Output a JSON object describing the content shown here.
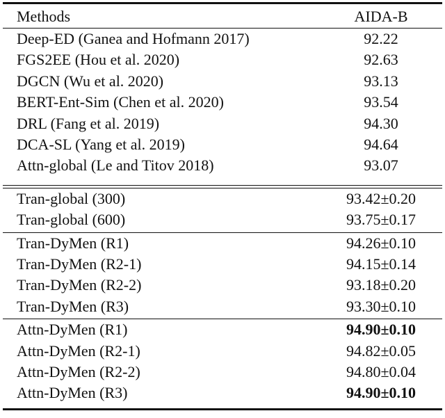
{
  "table": {
    "header": {
      "method": "Methods",
      "score": "AIDA-B"
    },
    "groups": [
      [
        {
          "method": "Deep-ED (Ganea and Hofmann 2017)",
          "score": "92.22"
        },
        {
          "method": "FGS2EE (Hou et al. 2020)",
          "score": "92.63"
        },
        {
          "method": "DGCN (Wu et al. 2020)",
          "score": "93.13"
        },
        {
          "method": "BERT-Ent-Sim (Chen et al. 2020)",
          "score": "93.54"
        },
        {
          "method": "DRL (Fang et al. 2019)",
          "score": "94.30"
        },
        {
          "method": "DCA-SL (Yang et al. 2019)",
          "score": "94.64"
        },
        {
          "method": "Attn-global (Le and Titov 2018)",
          "score": "93.07"
        }
      ],
      [
        {
          "method": "Tran-global (300)",
          "score": "93.42±0.20"
        },
        {
          "method": "Tran-global (600)",
          "score": "93.75±0.17"
        }
      ],
      [
        {
          "method": "Tran-DyMen (R1)",
          "score": "94.26±0.10"
        },
        {
          "method": "Tran-DyMen (R2-1)",
          "score": "94.15±0.14"
        },
        {
          "method": "Tran-DyMen (R2-2)",
          "score": "93.18±0.20"
        },
        {
          "method": "Tran-DyMen (R3)",
          "score": "93.30±0.10"
        }
      ],
      [
        {
          "method": "Attn-DyMen (R1)",
          "score": "94.90±0.10"
        },
        {
          "method": "Attn-DyMen (R2-1)",
          "score": "94.82±0.05"
        },
        {
          "method": "Attn-DyMen (R2-2)",
          "score": "94.80±0.04"
        },
        {
          "method": "Attn-DyMen (R3)",
          "score": "94.90±0.10"
        }
      ]
    ]
  }
}
